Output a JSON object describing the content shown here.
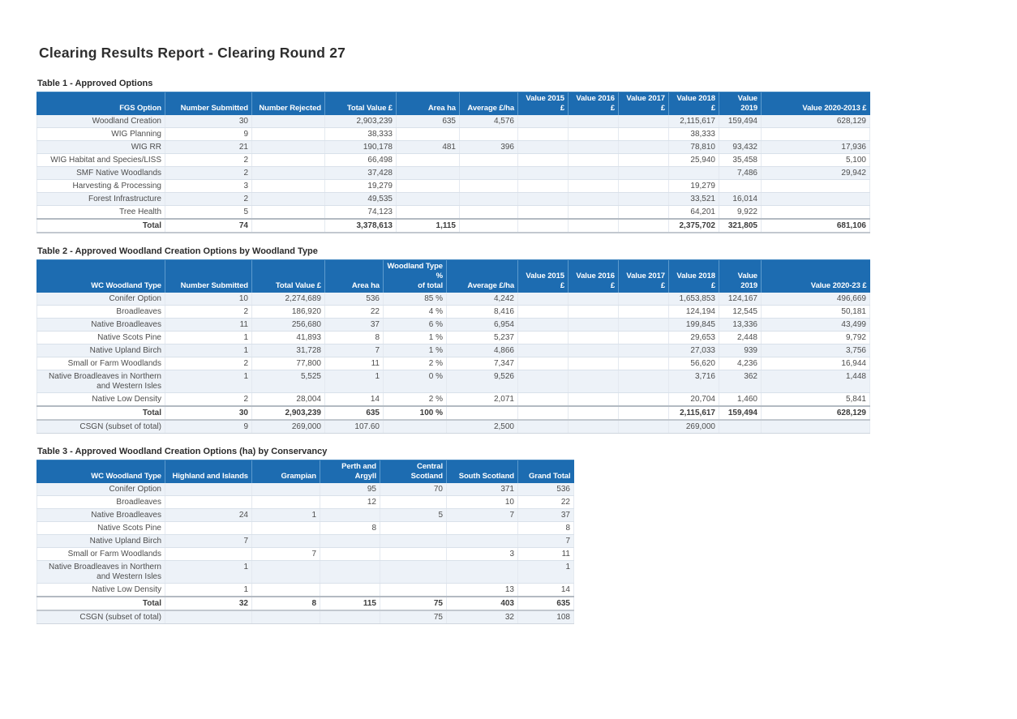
{
  "page": {
    "title": "Clearing Results Report - Clearing Round 27"
  },
  "colors": {
    "table_header_bg": "#1d6cb1",
    "table_header_text": "#ffffff",
    "table_header_separator": "#5d9bce",
    "row_alternate_bg": "#edf2f8",
    "row_border": "#d9e1ea",
    "total_row_border": "#b3bac2",
    "body_text": "#4d4d4d"
  },
  "tables": [
    {
      "caption": "Table 1 - Approved Options",
      "columns": [
        "FGS Option",
        "Number Submitted",
        "Number Rejected",
        "Total Value £",
        "Area ha",
        "Average £/ha",
        "Value 2015 £",
        "Value 2016 £",
        "Value 2017 £",
        "Value 2018 £",
        "Value 2019",
        "Value 2020-2013 £"
      ],
      "rows": [
        [
          "Woodland Creation",
          "30",
          "",
          "2,903,239",
          "635",
          "4,576",
          "",
          "",
          "",
          "2,115,617",
          "159,494",
          "628,129"
        ],
        [
          "WIG Planning",
          "9",
          "",
          "38,333",
          "",
          "",
          "",
          "",
          "",
          "38,333",
          "",
          ""
        ],
        [
          "WIG RR",
          "21",
          "",
          "190,178",
          "481",
          "396",
          "",
          "",
          "",
          "78,810",
          "93,432",
          "17,936"
        ],
        [
          "WIG Habitat and Species/LISS",
          "2",
          "",
          "66,498",
          "",
          "",
          "",
          "",
          "",
          "25,940",
          "35,458",
          "5,100"
        ],
        [
          "SMF Native Woodlands",
          "2",
          "",
          "37,428",
          "",
          "",
          "",
          "",
          "",
          "",
          "7,486",
          "29,942"
        ],
        [
          "Harvesting & Processing",
          "3",
          "",
          "19,279",
          "",
          "",
          "",
          "",
          "",
          "19,279",
          "",
          ""
        ],
        [
          "Forest Infrastructure",
          "2",
          "",
          "49,535",
          "",
          "",
          "",
          "",
          "",
          "33,521",
          "16,014",
          ""
        ],
        [
          "Tree Health",
          "5",
          "",
          "74,123",
          "",
          "",
          "",
          "",
          "",
          "64,201",
          "9,922",
          ""
        ]
      ],
      "total_row": [
        "Total",
        "74",
        "",
        "3,378,613",
        "1,115",
        "",
        "",
        "",
        "",
        "2,375,702",
        "321,805",
        "681,106"
      ],
      "footer_rows": []
    },
    {
      "caption": "Table 2 - Approved Woodland Creation Options by Woodland Type",
      "columns": [
        "WC Woodland Type",
        "Number Submitted",
        "Total Value £",
        "Area ha",
        "Woodland Type %\nof total",
        "Average £/ha",
        "Value 2015 £",
        "Value 2016 £",
        "Value 2017 £",
        "Value 2018 £",
        "Value 2019",
        "Value 2020-23 £"
      ],
      "rows": [
        [
          "Conifer Option",
          "10",
          "2,274,689",
          "536",
          "85 %",
          "4,242",
          "",
          "",
          "",
          "1,653,853",
          "124,167",
          "496,669"
        ],
        [
          "Broadleaves",
          "2",
          "186,920",
          "22",
          "4 %",
          "8,416",
          "",
          "",
          "",
          "124,194",
          "12,545",
          "50,181"
        ],
        [
          "Native Broadleaves",
          "11",
          "256,680",
          "37",
          "6 %",
          "6,954",
          "",
          "",
          "",
          "199,845",
          "13,336",
          "43,499"
        ],
        [
          "Native Scots Pine",
          "1",
          "41,893",
          "8",
          "1 %",
          "5,237",
          "",
          "",
          "",
          "29,653",
          "2,448",
          "9,792"
        ],
        [
          "Native Upland Birch",
          "1",
          "31,728",
          "7",
          "1 %",
          "4,866",
          "",
          "",
          "",
          "27,033",
          "939",
          "3,756"
        ],
        [
          "Small or Farm Woodlands",
          "2",
          "77,800",
          "11",
          "2 %",
          "7,347",
          "",
          "",
          "",
          "56,620",
          "4,236",
          "16,944"
        ],
        [
          "Native Broadleaves in Northern and Western Isles",
          "1",
          "5,525",
          "1",
          "0 %",
          "9,526",
          "",
          "",
          "",
          "3,716",
          "362",
          "1,448"
        ],
        [
          "Native Low Density",
          "2",
          "28,004",
          "14",
          "2 %",
          "2,071",
          "",
          "",
          "",
          "20,704",
          "1,460",
          "5,841"
        ]
      ],
      "total_row": [
        "Total",
        "30",
        "2,903,239",
        "635",
        "100 %",
        "",
        "",
        "",
        "",
        "2,115,617",
        "159,494",
        "628,129"
      ],
      "footer_rows": [
        [
          "CSGN (subset of total)",
          "9",
          "269,000",
          "107.60",
          "",
          "2,500",
          "",
          "",
          "",
          "269,000",
          "",
          ""
        ]
      ]
    },
    {
      "caption": "Table 3 - Approved Woodland Creation Options (ha) by Conservancy",
      "columns": [
        "WC Woodland Type",
        "Highland and Islands",
        "Grampian",
        "Perth and\nArgyll",
        "Central Scotland",
        "South Scotland",
        "Grand Total"
      ],
      "rows": [
        [
          "Conifer Option",
          "",
          "",
          "95",
          "70",
          "371",
          "536"
        ],
        [
          "Broadleaves",
          "",
          "",
          "12",
          "",
          "10",
          "22"
        ],
        [
          "Native Broadleaves",
          "24",
          "1",
          "",
          "5",
          "7",
          "37"
        ],
        [
          "Native Scots Pine",
          "",
          "",
          "8",
          "",
          "",
          "8"
        ],
        [
          "Native Upland Birch",
          "7",
          "",
          "",
          "",
          "",
          "7"
        ],
        [
          "Small or Farm Woodlands",
          "",
          "7",
          "",
          "",
          "3",
          "11"
        ],
        [
          "Native Broadleaves in Northern and Western Isles",
          "1",
          "",
          "",
          "",
          "",
          "1"
        ],
        [
          "Native Low Density",
          "1",
          "",
          "",
          "",
          "13",
          "14"
        ]
      ],
      "total_row": [
        "Total",
        "32",
        "8",
        "115",
        "75",
        "403",
        "635"
      ],
      "footer_rows": [
        [
          "CSGN (subset of total)",
          "",
          "",
          "",
          "75",
          "32",
          "108"
        ]
      ]
    }
  ]
}
